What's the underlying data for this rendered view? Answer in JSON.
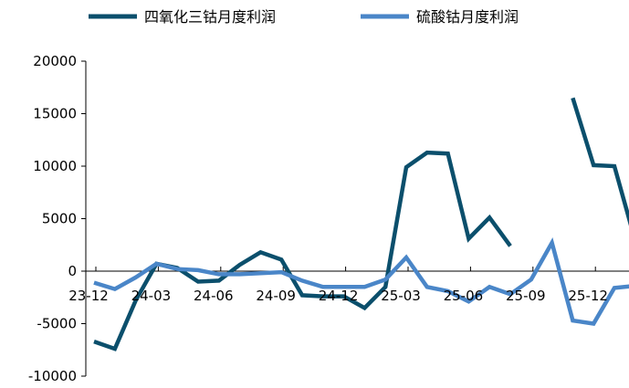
{
  "chart_data": {
    "type": "line",
    "title": "",
    "xlabel": "",
    "ylabel": "",
    "ylim": [
      -10000,
      20000
    ],
    "yticks": [
      -10000,
      -5000,
      0,
      5000,
      10000,
      15000,
      20000
    ],
    "ytick_labels": [
      "-10000",
      "-5000",
      "0",
      "5000",
      "10000",
      "15000",
      "20000"
    ],
    "x": [
      "23-12",
      "24-01",
      "24-02",
      "24-03",
      "24-04",
      "24-05",
      "24-06",
      "24-07",
      "24-08",
      "24-09",
      "24-10",
      "24-11",
      "24-12",
      "25-01",
      "25-02",
      "25-03",
      "25-04",
      "25-05",
      "25-06",
      "25-07",
      "25-08",
      "25-09",
      "25-10",
      "25-11",
      "25-12",
      "26-01",
      "26-02"
    ],
    "xtick_labels": [
      {
        "index": 0,
        "label": "23-12"
      },
      {
        "index": 3,
        "label": "24-03"
      },
      {
        "index": 6,
        "label": "24-06"
      },
      {
        "index": 9,
        "label": "24-09"
      },
      {
        "index": 12,
        "label": "24-12"
      },
      {
        "index": 15,
        "label": "25-03"
      },
      {
        "index": 18,
        "label": "25-06"
      },
      {
        "index": 21,
        "label": "25-09"
      },
      {
        "index": 24,
        "label": "25-12"
      }
    ],
    "grid": false,
    "legend_position": "top",
    "series": [
      {
        "name": "四氧化三钴月度利润",
        "color": "#0b4f6c",
        "values": [
          -6700,
          -7400,
          -2800,
          700,
          300,
          -1000,
          -900,
          600,
          1800,
          1100,
          -2300,
          -2400,
          -2400,
          -3500,
          -1500,
          9900,
          11300,
          11200,
          3100,
          5100,
          2400,
          null,
          null,
          16500,
          10100,
          10000,
          2900
        ]
      },
      {
        "name": "硫酸钴月度利润",
        "color": "#4a86c8",
        "values": [
          -1100,
          -1700,
          -600,
          700,
          200,
          100,
          -300,
          -300,
          -200,
          -100,
          -900,
          -1500,
          -1500,
          -1500,
          -800,
          1300,
          -1500,
          -1900,
          -2900,
          -1500,
          -2200,
          -800,
          2700,
          -4700,
          -5000,
          -1600,
          -1400
        ]
      }
    ]
  }
}
